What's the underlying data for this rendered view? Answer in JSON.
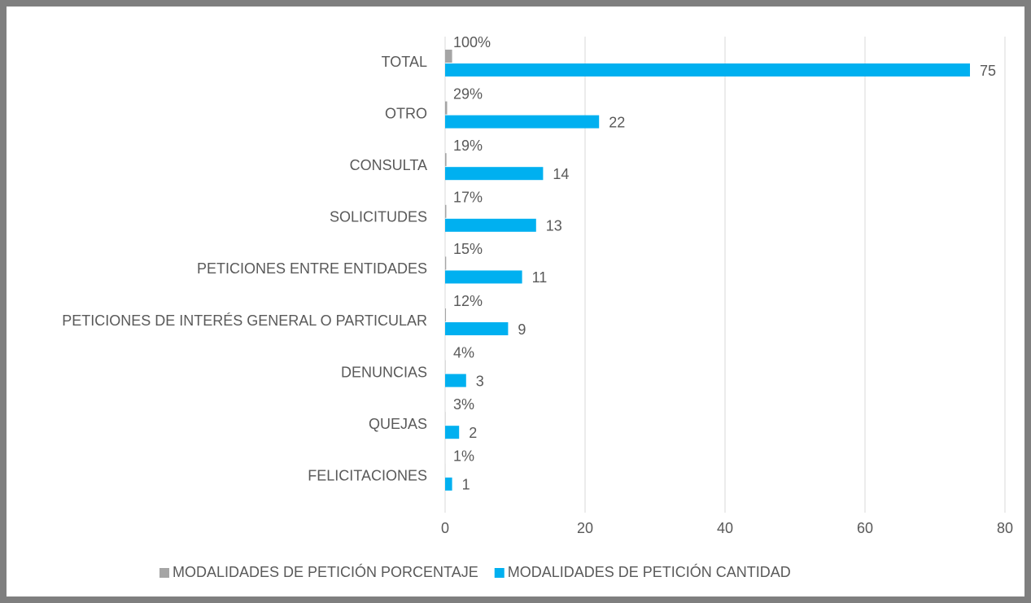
{
  "chart_data": {
    "type": "hbar",
    "categories": [
      "TOTAL",
      "OTRO",
      "CONSULTA",
      "SOLICITUDES",
      "PETICIONES ENTRE ENTIDADES",
      "PETICIONES DE INTERÉS GENERAL O PARTICULAR",
      "DENUNCIAS",
      "QUEJAS",
      "FELICITACIONES"
    ],
    "series": [
      {
        "name": "MODALIDADES DE PETICIÓN PORCENTAJE",
        "color": "#a5a5a5",
        "values": [
          1,
          0.29,
          0.19,
          0.17,
          0.15,
          0.12,
          0.04,
          0.03,
          0.01
        ],
        "value_labels": [
          "100%",
          "29%",
          "19%",
          "17%",
          "15%",
          "12%",
          "4%",
          "3%",
          "1%"
        ]
      },
      {
        "name": "MODALIDADES DE PETICIÓN CANTIDAD",
        "color": "#00b0f0",
        "values": [
          75,
          22,
          14,
          13,
          11,
          9,
          3,
          2,
          1
        ]
      }
    ],
    "xlim": [
      0,
      80
    ],
    "xticks": [
      0,
      20,
      40,
      60,
      80
    ],
    "grid": true,
    "legend": "bottom"
  }
}
